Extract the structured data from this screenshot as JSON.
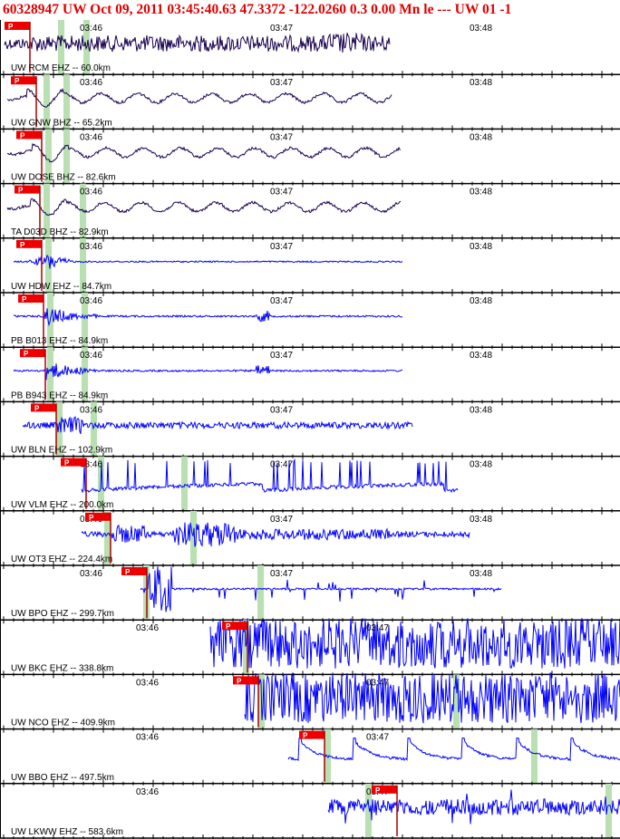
{
  "header": {
    "title": "60328947 UW Oct 09, 2011 03:45:40.63    47.3372 -122.0260  0.3 0.00 Mn le --- UW 01  -1"
  },
  "colors": {
    "trace_blue": "#0000ff",
    "trace_navy": "#1a0050",
    "pick_box": "#ee0000",
    "pick_line": "#aa0000",
    "window_band": "#b8e0b0",
    "axis": "#000000"
  },
  "time_ticks": [
    "03:46",
    "03:47",
    "03:48"
  ],
  "pick_label": "P",
  "traces": [
    {
      "label": "UW RCM EHZ -- 60.0km",
      "color": "navy"
    },
    {
      "label": "UW GNW BHZ -- 65.2km",
      "color": "navy"
    },
    {
      "label": "UW DOSE BHZ -- 82.6km",
      "color": "navy"
    },
    {
      "label": "TA D03D BHZ -- 82.9km",
      "color": "navy"
    },
    {
      "label": "UW HDW EHZ -- 84.7km",
      "color": "blue"
    },
    {
      "label": "PB B013 EHZ -- 84.9km",
      "color": "blue"
    },
    {
      "label": "PB B943 EHZ -- 84.9km",
      "color": "blue"
    },
    {
      "label": "UW BLN EHZ -- 102.9km",
      "color": "blue"
    },
    {
      "label": "UW VLM EHZ -- 200.0km",
      "color": "blue"
    },
    {
      "label": "UW OT3 EHZ -- 224.4km",
      "color": "blue"
    },
    {
      "label": "UW BPO EHZ -- 299.7km",
      "color": "blue"
    },
    {
      "label": "UW BKC EHZ -- 338.8km",
      "color": "blue"
    },
    {
      "label": "UW NCO EHZ -- 409.9km",
      "color": "blue"
    },
    {
      "label": "UW BBO EHZ -- 497.5km",
      "color": "blue"
    },
    {
      "label": "UW LKWW EHZ -- 583.6km",
      "color": "blue"
    }
  ]
}
